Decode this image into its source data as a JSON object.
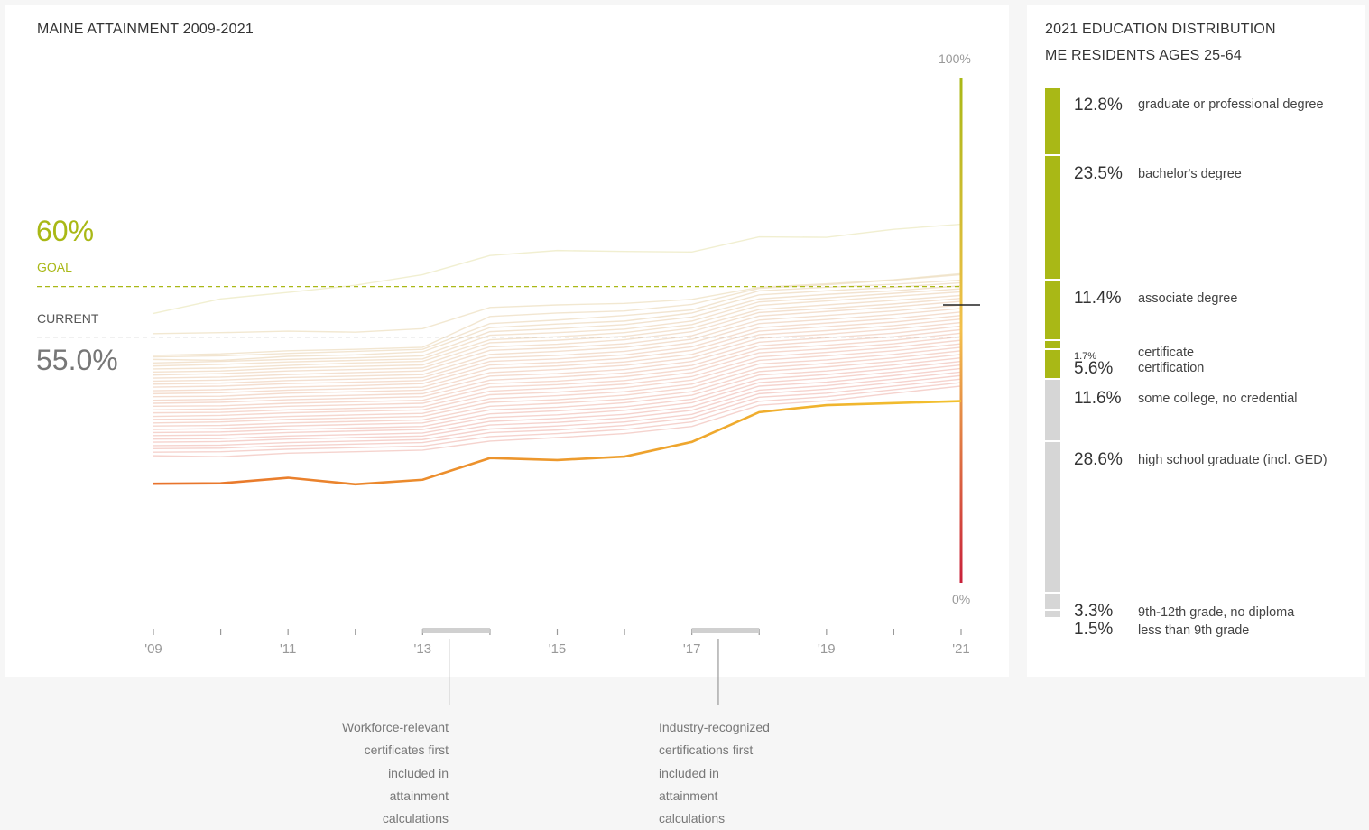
{
  "main": {
    "title": "MAINE ATTAINMENT 2009-2021",
    "goal_value": "60%",
    "goal_label": "GOAL",
    "current_label": "CURRENT",
    "current_value": "55.0%",
    "axis_top": "100%",
    "axis_bottom": "0%",
    "annotations": [
      "Workforce-relevant\ncertificates first\nincluded in\nattainment\ncalculations",
      "Industry-recognized\ncertifications first\nincluded in\nattainment\ncalculations"
    ]
  },
  "side": {
    "title_line1": "2021 EDUCATION DISTRIBUTION",
    "title_line2": "ME RESIDENTS AGES 25-64",
    "rows": [
      {
        "pct": "12.8%",
        "label": "graduate or professional degree",
        "value": 12.8,
        "group": "post"
      },
      {
        "pct": "23.5%",
        "label": "bachelor's degree",
        "value": 23.5,
        "group": "post"
      },
      {
        "pct": "11.4%",
        "label": "associate degree",
        "value": 11.4,
        "group": "post"
      },
      {
        "pct": "1.7%",
        "label": "certificate",
        "value": 1.7,
        "group": "post"
      },
      {
        "pct": "5.6%",
        "label": "certification",
        "value": 5.6,
        "group": "post"
      },
      {
        "pct": "11.6%",
        "label": "some college, no credential",
        "value": 11.6,
        "group": "non"
      },
      {
        "pct": "28.6%",
        "label": "high school graduate (incl. GED)",
        "value": 28.6,
        "group": "non"
      },
      {
        "pct": "3.3%",
        "label": "9th-12th grade, no diploma",
        "value": 3.3,
        "group": "non"
      },
      {
        "pct": "1.5%",
        "label": "less than 9th grade",
        "value": 1.5,
        "group": "non"
      }
    ]
  },
  "colors": {
    "goal": "#a9b816",
    "maine_line_start": "#e8722c",
    "maine_line_end": "#f2c12e",
    "bar_post": "#a9b816",
    "bar_non": "#d6d6d6",
    "scale_top": "#a9b816",
    "scale_mid": "#f3c04c",
    "scale_bottom": "#c8203a"
  },
  "chart_data": {
    "type": "line",
    "title": "MAINE ATTAINMENT 2009-2021",
    "x": [
      2009,
      2010,
      2011,
      2012,
      2013,
      2014,
      2015,
      2016,
      2017,
      2018,
      2019,
      2020,
      2021
    ],
    "x_tick_labels": [
      "'09",
      "'11",
      "'13",
      "'15",
      "'17",
      "'19",
      "'21"
    ],
    "ylim": [
      0,
      100
    ],
    "goal": 60,
    "current": 55.0,
    "highlighted_series": {
      "values": [
        38.6,
        38.7,
        39.8,
        38.5,
        39.4,
        43.7,
        43.3,
        44.0,
        46.9,
        52.8,
        54.2,
        54.6,
        55.0
      ]
    },
    "other_series": [
      [
        53.4,
        56.3,
        57.6,
        59.0,
        61.1,
        64.9,
        65.9,
        65.7,
        65.6,
        68.6,
        68.5,
        70.1,
        71.1
      ],
      [
        49.4,
        49.6,
        49.9,
        49.7,
        50.4,
        54.6,
        55.1,
        55.4,
        56.2,
        58.6,
        59.3,
        60.1,
        61.3
      ],
      [
        45.1,
        45.4,
        46.0,
        46.3,
        46.7,
        52.8,
        53.5,
        53.9,
        55.2,
        58.4,
        59.1,
        60.0,
        61.1
      ],
      [
        44.8,
        45.0,
        45.5,
        45.9,
        46.3,
        51.4,
        52.1,
        53.0,
        54.1,
        57.9,
        58.6,
        59.2,
        60.0
      ],
      [
        44.3,
        44.1,
        44.9,
        45.2,
        45.8,
        50.6,
        51.3,
        51.9,
        53.5,
        57.1,
        57.9,
        58.6,
        59.5
      ],
      [
        43.6,
        43.9,
        44.3,
        44.6,
        45.0,
        49.8,
        50.4,
        51.2,
        52.7,
        56.3,
        57.2,
        57.9,
        58.9
      ],
      [
        43.0,
        43.3,
        43.8,
        44.1,
        44.4,
        49.1,
        49.6,
        50.3,
        51.9,
        55.7,
        56.5,
        57.4,
        58.3
      ],
      [
        42.4,
        42.6,
        43.1,
        43.6,
        43.9,
        48.2,
        48.8,
        49.6,
        51.2,
        55.0,
        55.9,
        56.8,
        57.7
      ],
      [
        41.8,
        42.0,
        42.6,
        42.9,
        43.2,
        47.6,
        48.1,
        48.9,
        50.5,
        54.2,
        55.1,
        56.0,
        57.0
      ],
      [
        41.2,
        41.5,
        42.0,
        42.3,
        42.6,
        46.8,
        47.3,
        48.2,
        49.8,
        53.6,
        54.4,
        55.3,
        56.4
      ],
      [
        40.6,
        40.8,
        41.3,
        41.7,
        42.0,
        46.1,
        46.6,
        47.4,
        49.0,
        52.9,
        53.8,
        54.7,
        55.8
      ],
      [
        40.0,
        40.2,
        40.7,
        41.0,
        41.3,
        45.3,
        45.9,
        46.7,
        48.3,
        52.1,
        53.0,
        53.9,
        55.1
      ],
      [
        39.4,
        39.6,
        40.1,
        40.4,
        40.7,
        44.6,
        45.1,
        45.9,
        47.6,
        51.4,
        52.2,
        53.2,
        54.4
      ],
      [
        38.8,
        39.0,
        39.5,
        39.8,
        40.1,
        43.9,
        44.4,
        45.2,
        46.8,
        50.6,
        51.5,
        52.4,
        53.7
      ],
      [
        38.1,
        38.3,
        38.8,
        39.1,
        39.5,
        43.2,
        43.7,
        44.5,
        46.1,
        49.9,
        50.8,
        51.7,
        53.0
      ],
      [
        37.5,
        37.7,
        38.2,
        38.5,
        38.8,
        42.5,
        43.0,
        43.8,
        45.3,
        49.2,
        50.0,
        51.0,
        52.3
      ],
      [
        36.9,
        37.0,
        37.6,
        37.9,
        38.2,
        41.7,
        42.3,
        43.1,
        44.6,
        48.5,
        49.3,
        50.3,
        51.6
      ],
      [
        36.2,
        36.4,
        36.9,
        37.2,
        37.5,
        41.0,
        41.5,
        42.3,
        43.9,
        47.7,
        48.6,
        49.5,
        50.9
      ],
      [
        35.6,
        35.8,
        36.3,
        36.6,
        36.9,
        40.2,
        40.8,
        41.6,
        43.1,
        47.0,
        47.9,
        48.8,
        50.2
      ],
      [
        35.0,
        35.1,
        35.6,
        35.9,
        36.2,
        39.5,
        40.0,
        40.9,
        42.4,
        46.3,
        47.1,
        48.1,
        49.5
      ],
      [
        34.3,
        34.5,
        35.0,
        35.3,
        35.6,
        38.8,
        39.3,
        40.1,
        41.7,
        45.6,
        46.4,
        47.4,
        48.8
      ],
      [
        33.7,
        33.8,
        34.3,
        34.6,
        34.9,
        38.0,
        38.6,
        39.4,
        40.9,
        44.8,
        45.7,
        46.7,
        48.1
      ],
      [
        33.0,
        33.2,
        33.7,
        34.0,
        34.3,
        37.3,
        37.8,
        38.7,
        40.2,
        44.1,
        45.0,
        46.0,
        47.4
      ],
      [
        32.4,
        32.5,
        33.0,
        33.3,
        33.6,
        36.5,
        37.1,
        37.9,
        39.4,
        43.4,
        44.2,
        45.3,
        46.7
      ],
      [
        31.7,
        31.9,
        32.4,
        32.7,
        33.0,
        35.8,
        36.3,
        37.2,
        38.7,
        42.6,
        43.5,
        44.6,
        46.0
      ],
      [
        31.1,
        31.2,
        31.7,
        32.0,
        32.3,
        35.0,
        35.6,
        36.4,
        37.9,
        41.9,
        42.8,
        43.9,
        45.3
      ],
      [
        30.4,
        30.6,
        31.1,
        31.4,
        31.7,
        34.3,
        34.8,
        35.7,
        37.2,
        41.2,
        42.0,
        43.2,
        44.6
      ],
      [
        29.8,
        29.9,
        30.4,
        30.7,
        31.0,
        33.5,
        34.1,
        34.9,
        36.4,
        40.4,
        41.3,
        42.5,
        43.9
      ],
      [
        29.2,
        29.3,
        29.8,
        30.1,
        30.4,
        32.8,
        33.3,
        34.2,
        35.7,
        39.7,
        40.6,
        41.8,
        43.2
      ],
      [
        28.5,
        28.6,
        29.1,
        29.4,
        29.7,
        32.0,
        32.6,
        33.4,
        34.9,
        39.0,
        39.8,
        41.1,
        42.5
      ],
      [
        27.9,
        28.0,
        28.5,
        28.8,
        29.1,
        31.3,
        31.8,
        32.7,
        34.2,
        38.2,
        39.1,
        40.4,
        41.8
      ],
      [
        27.2,
        27.3,
        27.8,
        28.1,
        28.4,
        30.5,
        31.1,
        31.9,
        33.4,
        37.5,
        38.4,
        39.7,
        41.1
      ],
      [
        26.6,
        26.7,
        27.2,
        27.5,
        27.8,
        29.8,
        30.3,
        31.2,
        32.7,
        36.8,
        37.6,
        39.0,
        40.4
      ],
      [
        25.9,
        26.0,
        26.5,
        26.8,
        27.1,
        29.0,
        29.6,
        30.4,
        31.9,
        36.0,
        36.9,
        38.3,
        39.7
      ],
      [
        25.2,
        25.0,
        25.7,
        26.0,
        26.3,
        28.1,
        28.8,
        29.6,
        31.0,
        35.2,
        36.1,
        37.6,
        39.0
      ]
    ]
  }
}
